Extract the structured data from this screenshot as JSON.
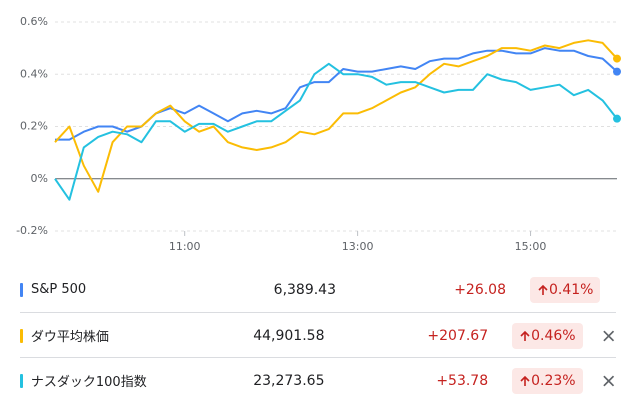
{
  "chart_data": {
    "type": "line",
    "categories": [
      "9:30",
      "9:40",
      "9:50",
      "10:00",
      "10:10",
      "10:20",
      "10:30",
      "10:40",
      "10:50",
      "11:00",
      "11:10",
      "11:20",
      "11:30",
      "11:40",
      "11:50",
      "12:00",
      "12:10",
      "12:20",
      "12:30",
      "12:40",
      "12:50",
      "13:00",
      "13:10",
      "13:20",
      "13:30",
      "13:40",
      "13:50",
      "14:00",
      "14:10",
      "14:20",
      "14:30",
      "14:40",
      "14:50",
      "15:00",
      "15:10",
      "15:20",
      "15:30",
      "15:40",
      "15:50",
      "16:00"
    ],
    "xticks": [
      "11:00",
      "13:00",
      "15:00"
    ],
    "ylim": [
      -0.2,
      0.6
    ],
    "yticks": [
      {
        "value": -0.2,
        "label": "-0.2%"
      },
      {
        "value": 0,
        "label": "0%"
      },
      {
        "value": 0.2,
        "label": "0.2%"
      },
      {
        "value": 0.4,
        "label": "0.4%"
      },
      {
        "value": 0.6,
        "label": "0.6%"
      }
    ],
    "grid": true,
    "series": [
      {
        "name": "S&P 500",
        "color": "#4285f4",
        "values": [
          0.15,
          0.15,
          0.18,
          0.2,
          0.2,
          0.18,
          0.2,
          0.25,
          0.27,
          0.25,
          0.28,
          0.25,
          0.22,
          0.25,
          0.26,
          0.25,
          0.27,
          0.35,
          0.37,
          0.37,
          0.42,
          0.41,
          0.41,
          0.42,
          0.43,
          0.42,
          0.45,
          0.46,
          0.46,
          0.48,
          0.49,
          0.49,
          0.48,
          0.48,
          0.5,
          0.49,
          0.49,
          0.47,
          0.46,
          0.41
        ]
      },
      {
        "name": "ダウ平均株価",
        "color": "#fbbc04",
        "values": [
          0.14,
          0.2,
          0.05,
          -0.05,
          0.14,
          0.2,
          0.2,
          0.25,
          0.28,
          0.22,
          0.18,
          0.2,
          0.14,
          0.12,
          0.11,
          0.12,
          0.14,
          0.18,
          0.17,
          0.19,
          0.25,
          0.25,
          0.27,
          0.3,
          0.33,
          0.35,
          0.4,
          0.44,
          0.43,
          0.45,
          0.47,
          0.5,
          0.5,
          0.49,
          0.51,
          0.5,
          0.52,
          0.53,
          0.52,
          0.46
        ]
      },
      {
        "name": "ナスダック100指数",
        "color": "#24c1e0",
        "values": [
          0.0,
          -0.08,
          0.12,
          0.16,
          0.18,
          0.17,
          0.14,
          0.22,
          0.22,
          0.18,
          0.21,
          0.21,
          0.18,
          0.2,
          0.22,
          0.22,
          0.26,
          0.3,
          0.4,
          0.44,
          0.4,
          0.4,
          0.39,
          0.36,
          0.37,
          0.37,
          0.35,
          0.33,
          0.34,
          0.34,
          0.4,
          0.38,
          0.37,
          0.34,
          0.35,
          0.36,
          0.32,
          0.34,
          0.3,
          0.23
        ]
      }
    ]
  },
  "table": {
    "rows": [
      {
        "price": "6,389.43",
        "change": "+26.08",
        "change_pct": "0.41%"
      },
      {
        "price": "44,901.58",
        "change": "+207.67",
        "change_pct": "0.46%"
      },
      {
        "price": "23,273.65",
        "change": "+53.78",
        "change_pct": "0.23%"
      }
    ]
  }
}
